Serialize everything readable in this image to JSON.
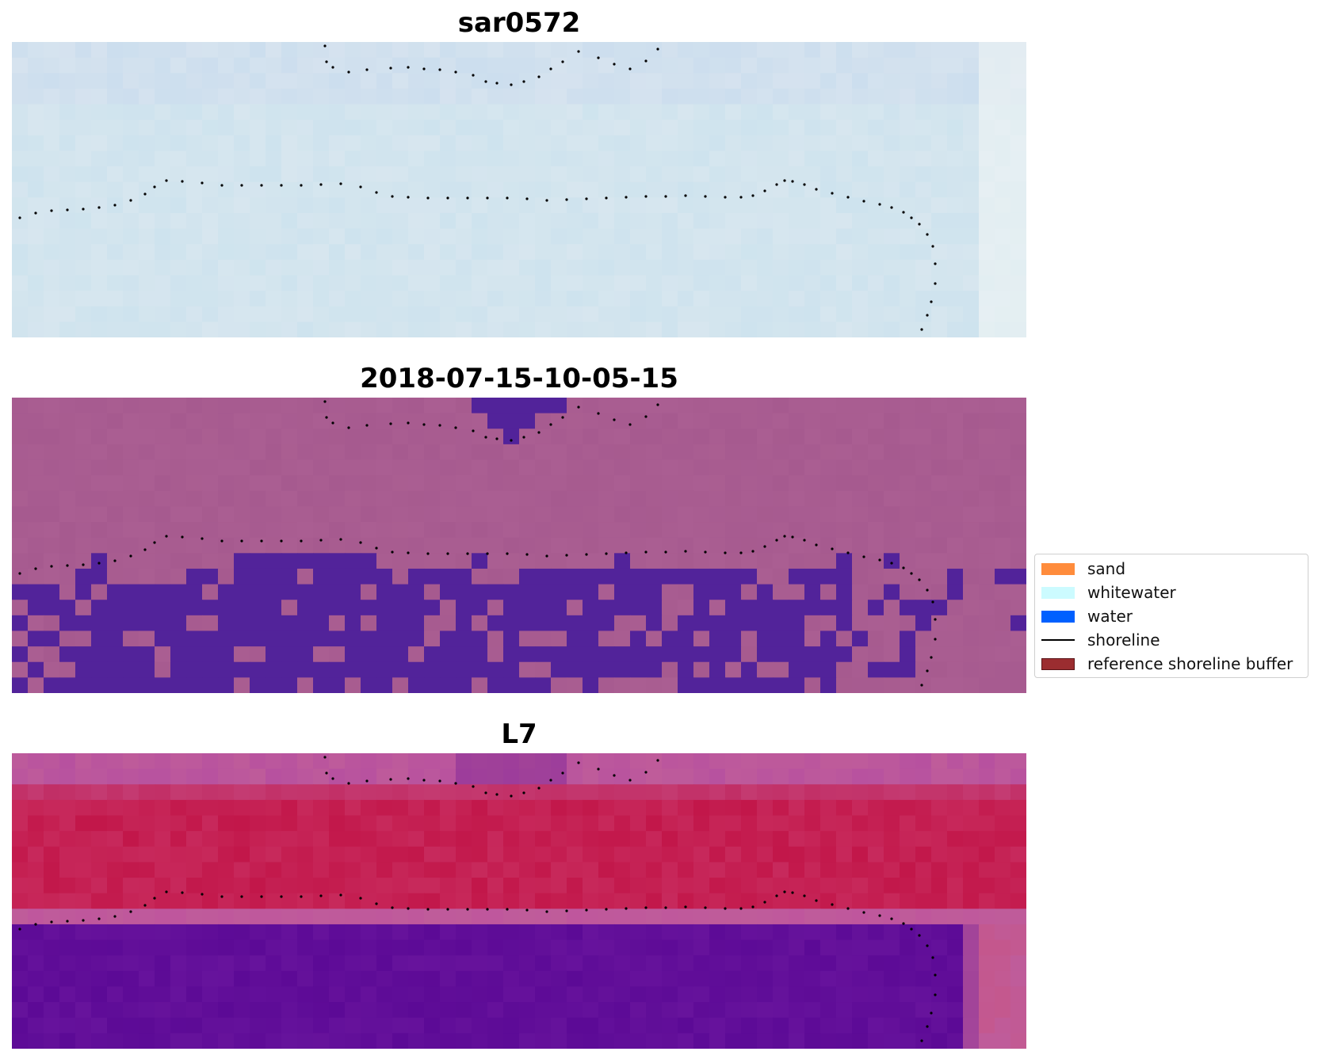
{
  "panels": [
    {
      "id": "rgb",
      "title": "sar0572"
    },
    {
      "id": "classified",
      "title": "2018-07-15-10-05-15"
    },
    {
      "id": "mndwi",
      "title": "L7"
    }
  ],
  "legend": {
    "items": [
      {
        "label": "sand",
        "color": "#ff8c3c",
        "kind": "patch"
      },
      {
        "label": "whitewater",
        "color": "#ccfbff",
        "kind": "patch"
      },
      {
        "label": "water",
        "color": "#0060ff",
        "kind": "patch"
      },
      {
        "label": "shoreline",
        "color": "#000000",
        "kind": "line"
      },
      {
        "label": "reference shoreline buffer",
        "color": "#9b2d30",
        "kind": "patch"
      }
    ]
  },
  "colors": {
    "rgb_base": "#cfe4ee",
    "classified_base": "#a65a8f",
    "water_class": "#52239a",
    "mndwi_red": "#c2174a",
    "mndwi_purple": "#5c0a96",
    "mndwi_mid": "#bf5c9a"
  }
}
